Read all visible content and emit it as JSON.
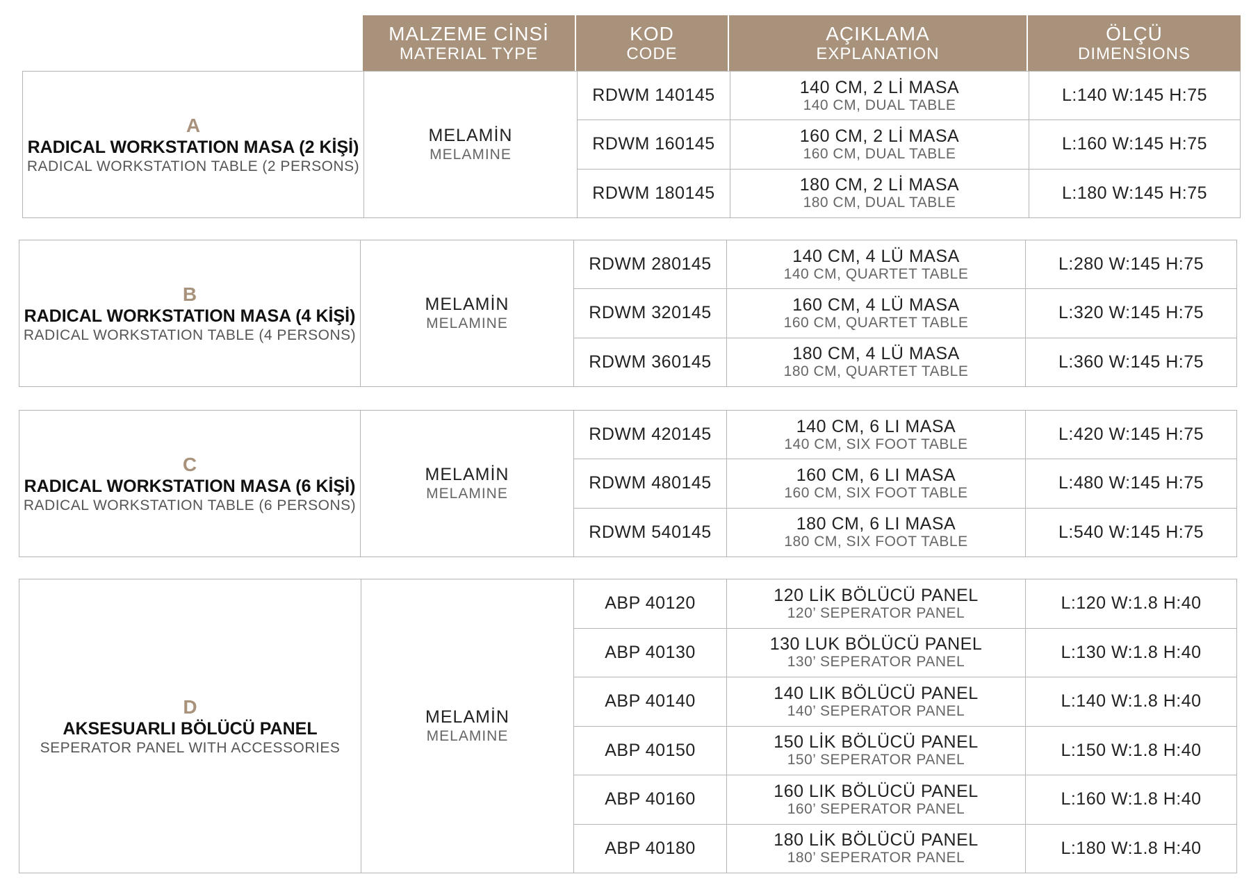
{
  "header": {
    "columns": [
      {
        "tr": "MALZEME CİNSİ",
        "en": "MATERIAL TYPE"
      },
      {
        "tr": "KOD",
        "en": "CODE"
      },
      {
        "tr": "AÇIKLAMA",
        "en": "EXPLANATION"
      },
      {
        "tr": "ÖLÇÜ",
        "en": "DIMENSIONS"
      }
    ]
  },
  "groups": [
    {
      "letter": "A",
      "name_tr": "RADICAL WORKSTATION MASA (2 KİŞİ)",
      "name_en": "RADICAL WORKSTATION TABLE (2 PERSONS)",
      "material_tr": "MELAMİN",
      "material_en": "MELAMINE",
      "rows": [
        {
          "code": "RDWM 140145",
          "exp_tr": "140 CM, 2 Lİ MASA",
          "exp_en": "140 CM, DUAL TABLE",
          "dim": "L:140 W:145 H:75"
        },
        {
          "code": "RDWM 160145",
          "exp_tr": "160 CM, 2 Lİ MASA",
          "exp_en": "160 CM, DUAL TABLE",
          "dim": "L:160 W:145 H:75"
        },
        {
          "code": "RDWM 180145",
          "exp_tr": "180 CM, 2 Lİ MASA",
          "exp_en": "180 CM, DUAL TABLE",
          "dim": "L:180 W:145 H:75"
        }
      ]
    },
    {
      "letter": "B",
      "name_tr": "RADICAL WORKSTATION MASA (4 KİŞİ)",
      "name_en": "RADICAL WORKSTATION TABLE (4 PERSONS)",
      "material_tr": "MELAMİN",
      "material_en": "MELAMINE",
      "rows": [
        {
          "code": "RDWM 280145",
          "exp_tr": "140 CM, 4 LÜ MASA",
          "exp_en": "140 CM, QUARTET TABLE",
          "dim": "L:280 W:145 H:75"
        },
        {
          "code": "RDWM 320145",
          "exp_tr": "160 CM, 4 LÜ MASA",
          "exp_en": "160 CM, QUARTET TABLE",
          "dim": "L:320 W:145 H:75"
        },
        {
          "code": "RDWM 360145",
          "exp_tr": "180 CM, 4 LÜ MASA",
          "exp_en": "180 CM, QUARTET TABLE",
          "dim": "L:360 W:145 H:75"
        }
      ]
    },
    {
      "letter": "C",
      "name_tr": "RADICAL WORKSTATION MASA (6 KİŞİ)",
      "name_en": "RADICAL WORKSTATION TABLE (6 PERSONS)",
      "material_tr": "MELAMİN",
      "material_en": "MELAMINE",
      "rows": [
        {
          "code": "RDWM 420145",
          "exp_tr": "140 CM, 6 LI MASA",
          "exp_en": "140 CM, SIX FOOT TABLE",
          "dim": "L:420 W:145 H:75"
        },
        {
          "code": "RDWM 480145",
          "exp_tr": "160 CM, 6 LI MASA",
          "exp_en": "160 CM, SIX FOOT TABLE",
          "dim": "L:480 W:145 H:75"
        },
        {
          "code": "RDWM 540145",
          "exp_tr": "180 CM, 6 LI MASA",
          "exp_en": "180 CM, SIX FOOT TABLE",
          "dim": "L:540 W:145 H:75"
        }
      ]
    },
    {
      "letter": "D",
      "name_tr": "AKSESUARLI BÖLÜCÜ PANEL",
      "name_en": "SEPERATOR PANEL WITH ACCESSORIES",
      "material_tr": "MELAMİN",
      "material_en": "MELAMINE",
      "rows": [
        {
          "code": "ABP 40120",
          "exp_tr": "120 LİK BÖLÜCÜ PANEL",
          "exp_en": "120’ SEPERATOR PANEL",
          "dim": "L:120 W:1.8 H:40"
        },
        {
          "code": "ABP 40130",
          "exp_tr": "130 LUK BÖLÜCÜ PANEL",
          "exp_en": "130’ SEPERATOR PANEL",
          "dim": "L:130 W:1.8 H:40"
        },
        {
          "code": "ABP 40140",
          "exp_tr": "140 LIK BÖLÜCÜ PANEL",
          "exp_en": "140’ SEPERATOR PANEL",
          "dim": "L:140 W:1.8 H:40"
        },
        {
          "code": "ABP 40150",
          "exp_tr": "150 LİK BÖLÜCÜ PANEL",
          "exp_en": "150’ SEPERATOR PANEL",
          "dim": "L:150 W:1.8 H:40"
        },
        {
          "code": "ABP 40160",
          "exp_tr": "160 LIK BÖLÜCÜ PANEL",
          "exp_en": "160’ SEPERATOR PANEL",
          "dim": "L:160 W:1.8 H:40"
        },
        {
          "code": "ABP 40180",
          "exp_tr": "180 LİK BÖLÜCÜ PANEL",
          "exp_en": "180’ SEPERATOR PANEL",
          "dim": "L:180 W:1.8 H:40"
        }
      ]
    }
  ]
}
